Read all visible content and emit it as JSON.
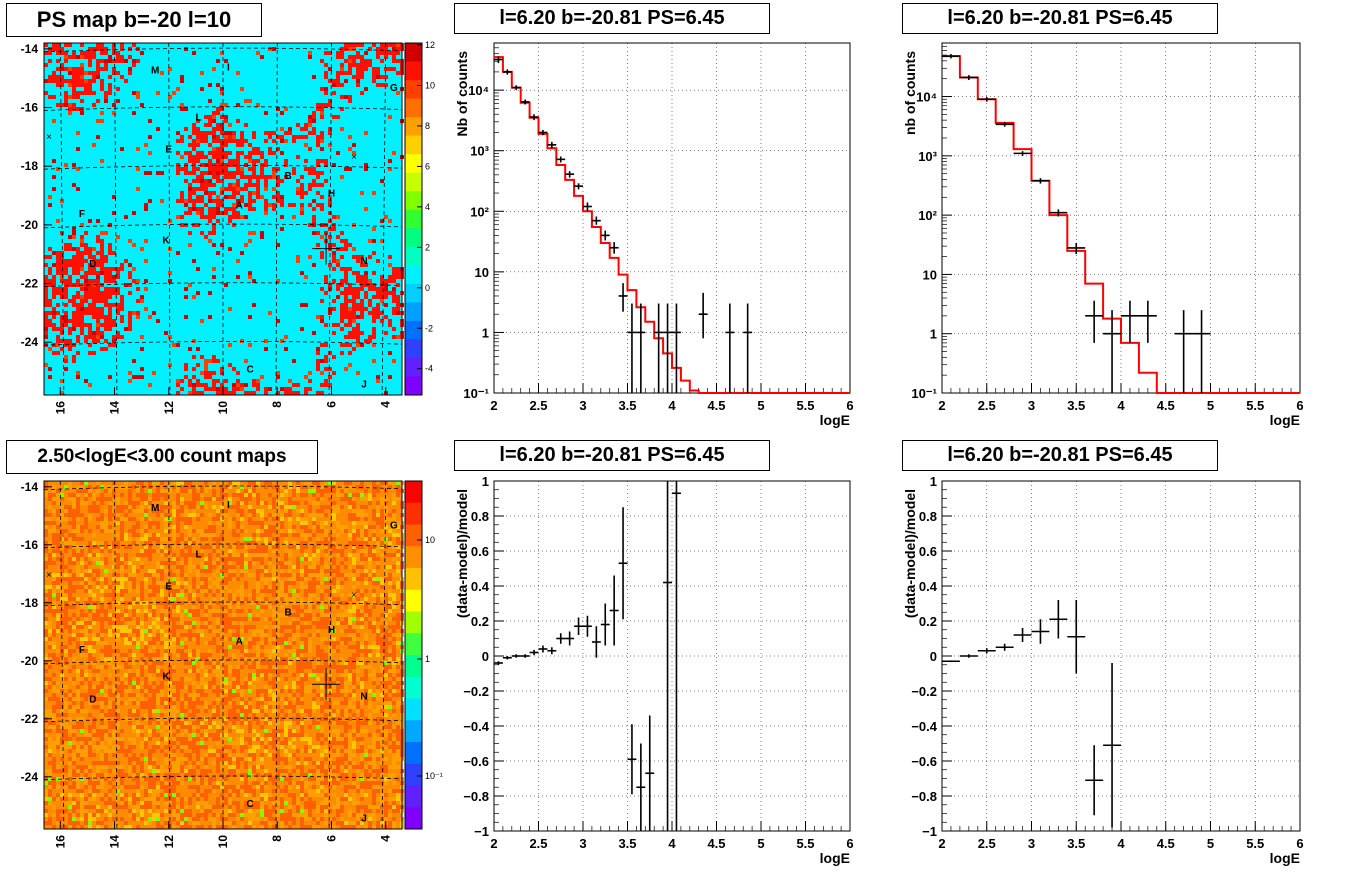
{
  "maps": {
    "ps_map": {
      "title": "PS map b=-20 l=10",
      "y_ticks": [
        "-14",
        "-16",
        "-18",
        "-20",
        "-22",
        "-24"
      ],
      "x_ticks": [
        "16",
        "14",
        "12",
        "10",
        "8",
        "6",
        "4"
      ],
      "colorbar_ticks": [
        "12",
        "10",
        "8",
        "6",
        "4",
        "2",
        "0",
        "-2",
        "-4"
      ],
      "colors": {
        "background": "#00f0ff",
        "mid": "#00ffa0",
        "high": "#7fff00"
      }
    },
    "count_map": {
      "title": "2.50<logE<3.00 count maps",
      "y_ticks": [
        "-14",
        "-16",
        "-18",
        "-20",
        "-22",
        "-24"
      ],
      "x_ticks": [
        "16",
        "14",
        "12",
        "10",
        "8",
        "6",
        "4"
      ],
      "colorbar_ticks": [
        "10",
        "1",
        "10⁻¹"
      ],
      "colors": {
        "background": "#ff8c00",
        "mid": "#ff6a00",
        "high": "#ff3000"
      }
    },
    "sources": [
      {
        "label": "M",
        "l": 12.5,
        "b": -14.7
      },
      {
        "label": "I",
        "l": 9.8,
        "b": -14.6
      },
      {
        "label": "G",
        "l": 3.7,
        "b": -15.3
      },
      {
        "label": "L",
        "l": 10.9,
        "b": -16.3
      },
      {
        "label": "E",
        "l": 12.0,
        "b": -17.4
      },
      {
        "label": "B",
        "l": 7.6,
        "b": -18.3
      },
      {
        "label": "H",
        "l": 6.0,
        "b": -18.9
      },
      {
        "label": "A",
        "l": 9.4,
        "b": -19.3
      },
      {
        "label": "F",
        "l": 15.2,
        "b": -19.6
      },
      {
        "label": "K",
        "l": 12.1,
        "b": -20.5
      },
      {
        "label": "D",
        "l": 14.8,
        "b": -21.3
      },
      {
        "label": "N",
        "l": 4.8,
        "b": -21.2
      },
      {
        "label": "C",
        "l": 9.0,
        "b": -24.9
      },
      {
        "label": "J",
        "l": 4.8,
        "b": -25.4
      }
    ],
    "marker": {
      "l": 6.2,
      "b": -20.81
    }
  },
  "spectrum_left": {
    "title": "l=6.20 b=-20.81 PS=6.45",
    "chart_data": {
      "type": "line",
      "xlabel": "logE",
      "ylabel": "Nb of counts",
      "xlim": [
        2,
        6
      ],
      "ylim": [
        0.1,
        60000
      ],
      "log_y": true,
      "x_ticks": [
        "2",
        "2.5",
        "3",
        "3.5",
        "4",
        "4.5",
        "5",
        "5.5",
        "6"
      ],
      "y_ticks": [
        {
          "v": 0.1,
          "t": "10⁻¹"
        },
        {
          "v": 1,
          "t": "1"
        },
        {
          "v": 10,
          "t": "10"
        },
        {
          "v": 100,
          "t": "10²"
        },
        {
          "v": 1000,
          "t": "10³"
        },
        {
          "v": 10000,
          "t": "10⁴"
        }
      ],
      "model_step": {
        "edges": [
          2,
          2.1,
          2.2,
          2.3,
          2.4,
          2.5,
          2.6,
          2.7,
          2.8,
          2.9,
          3.0,
          3.1,
          3.2,
          3.3,
          3.4,
          3.5,
          3.6,
          3.7,
          3.8,
          3.9,
          4.0,
          4.1,
          4.2,
          4.3,
          4.4,
          6.0
        ],
        "values": [
          35000,
          20000,
          11000,
          6200,
          3500,
          1900,
          1100,
          580,
          330,
          180,
          100,
          55,
          30,
          17,
          9,
          5,
          2.6,
          1.5,
          0.8,
          0.45,
          0.26,
          0.16,
          0.11,
          0.1,
          0.1
        ]
      },
      "data_points": [
        {
          "x": 2.05,
          "y": 32000,
          "lo": 28000,
          "hi": 36000
        },
        {
          "x": 2.15,
          "y": 20000,
          "lo": 18000,
          "hi": 22000
        },
        {
          "x": 2.25,
          "y": 11000,
          "lo": 10000,
          "hi": 12000
        },
        {
          "x": 2.35,
          "y": 6400,
          "lo": 5800,
          "hi": 7000
        },
        {
          "x": 2.45,
          "y": 3600,
          "lo": 3200,
          "hi": 4000
        },
        {
          "x": 2.55,
          "y": 2000,
          "lo": 1800,
          "hi": 2200
        },
        {
          "x": 2.65,
          "y": 1250,
          "lo": 1100,
          "hi": 1400
        },
        {
          "x": 2.75,
          "y": 720,
          "lo": 640,
          "hi": 800
        },
        {
          "x": 2.85,
          "y": 410,
          "lo": 360,
          "hi": 460
        },
        {
          "x": 2.95,
          "y": 260,
          "lo": 230,
          "hi": 290
        },
        {
          "x": 3.05,
          "y": 120,
          "lo": 100,
          "hi": 140
        },
        {
          "x": 3.15,
          "y": 70,
          "lo": 60,
          "hi": 82
        },
        {
          "x": 3.25,
          "y": 40,
          "lo": 33,
          "hi": 48
        },
        {
          "x": 3.35,
          "y": 25,
          "lo": 20,
          "hi": 31
        },
        {
          "x": 3.45,
          "y": 4,
          "lo": 2.2,
          "hi": 6.5
        },
        {
          "x": 3.55,
          "y": 1,
          "lo": 0.1,
          "hi": 3
        },
        {
          "x": 3.65,
          "y": 1,
          "lo": 0.1,
          "hi": 3
        },
        {
          "x": 3.85,
          "y": 1,
          "lo": 0.1,
          "hi": 3
        },
        {
          "x": 3.95,
          "y": 1,
          "lo": 0.1,
          "hi": 3
        },
        {
          "x": 4.05,
          "y": 1,
          "lo": 0.1,
          "hi": 3
        },
        {
          "x": 4.35,
          "y": 2,
          "lo": 0.8,
          "hi": 4.5
        },
        {
          "x": 4.65,
          "y": 1,
          "lo": 0.1,
          "hi": 3
        },
        {
          "x": 4.85,
          "y": 1,
          "lo": 0.1,
          "hi": 3
        }
      ],
      "colors": {
        "model": "#ff0000",
        "data": "#000000"
      }
    }
  },
  "spectrum_right": {
    "title": "l=6.20 b=-20.81 PS=6.45",
    "chart_data": {
      "type": "line",
      "xlabel": "logE",
      "ylabel": "nb of counts",
      "xlim": [
        2,
        6
      ],
      "ylim": [
        0.1,
        80000
      ],
      "log_y": true,
      "x_ticks": [
        "2",
        "2.5",
        "3",
        "3.5",
        "4",
        "4.5",
        "5",
        "5.5",
        "6"
      ],
      "y_ticks": [
        {
          "v": 0.1,
          "t": "10⁻¹"
        },
        {
          "v": 1,
          "t": "1"
        },
        {
          "v": 10,
          "t": "10"
        },
        {
          "v": 100,
          "t": "10²"
        },
        {
          "v": 1000,
          "t": "10³"
        },
        {
          "v": 10000,
          "t": "10⁴"
        }
      ],
      "model_step": {
        "edges": [
          2,
          2.2,
          2.4,
          2.6,
          2.8,
          3.0,
          3.2,
          3.4,
          3.6,
          3.8,
          4.0,
          4.2,
          4.4,
          6.0
        ],
        "values": [
          48000,
          21000,
          9000,
          3600,
          1300,
          380,
          100,
          25,
          7,
          1.8,
          0.7,
          0.22,
          0.1
        ]
      },
      "data_points": [
        {
          "x": 2.1,
          "y": 48000,
          "lo": 44000,
          "hi": 52000
        },
        {
          "x": 2.3,
          "y": 21000,
          "lo": 19000,
          "hi": 23000
        },
        {
          "x": 2.5,
          "y": 9000,
          "lo": 8200,
          "hi": 9800
        },
        {
          "x": 2.7,
          "y": 3400,
          "lo": 3100,
          "hi": 3700
        },
        {
          "x": 2.9,
          "y": 1100,
          "lo": 1000,
          "hi": 1200
        },
        {
          "x": 3.1,
          "y": 380,
          "lo": 340,
          "hi": 420
        },
        {
          "x": 3.3,
          "y": 110,
          "lo": 95,
          "hi": 125
        },
        {
          "x": 3.5,
          "y": 28,
          "lo": 22,
          "hi": 34
        },
        {
          "x": 3.7,
          "y": 2,
          "lo": 0.7,
          "hi": 3.6
        },
        {
          "x": 3.9,
          "y": 1,
          "lo": 0.1,
          "hi": 2.5
        },
        {
          "x": 4.1,
          "y": 2,
          "lo": 0.7,
          "hi": 3.6
        },
        {
          "x": 4.3,
          "y": 2,
          "lo": 0.7,
          "hi": 3.6
        },
        {
          "x": 4.7,
          "y": 1,
          "lo": 0.1,
          "hi": 2.5
        },
        {
          "x": 4.9,
          "y": 1,
          "lo": 0.1,
          "hi": 2.5
        }
      ],
      "colors": {
        "model": "#ff0000",
        "data": "#000000"
      }
    }
  },
  "residual_left": {
    "title": "l=6.20 b=-20.81 PS=6.45",
    "chart_data": {
      "type": "scatter",
      "xlabel": "logE",
      "ylabel": "(data-model)/model",
      "xlim": [
        2,
        6
      ],
      "ylim": [
        -1,
        1
      ],
      "x_ticks": [
        "2",
        "2.5",
        "3",
        "3.5",
        "4",
        "4.5",
        "5",
        "5.5",
        "6"
      ],
      "y_ticks": [
        "-1",
        "-0.8",
        "-0.6",
        "-0.4",
        "-0.2",
        "0",
        "0.2",
        "0.4",
        "0.6",
        "0.8",
        "1"
      ],
      "data_points": [
        {
          "x": 2.05,
          "y": -0.04,
          "err": 0.01
        },
        {
          "x": 2.15,
          "y": -0.01,
          "err": 0.01
        },
        {
          "x": 2.25,
          "y": 0.0,
          "err": 0.01
        },
        {
          "x": 2.35,
          "y": 0.0,
          "err": 0.01
        },
        {
          "x": 2.45,
          "y": 0.02,
          "err": 0.015
        },
        {
          "x": 2.55,
          "y": 0.04,
          "err": 0.02
        },
        {
          "x": 2.65,
          "y": 0.03,
          "err": 0.02
        },
        {
          "x": 2.75,
          "y": 0.1,
          "err": 0.03
        },
        {
          "x": 2.85,
          "y": 0.1,
          "err": 0.04
        },
        {
          "x": 2.95,
          "y": 0.17,
          "err": 0.05
        },
        {
          "x": 3.05,
          "y": 0.17,
          "err": 0.06
        },
        {
          "x": 3.15,
          "y": 0.08,
          "err": 0.09
        },
        {
          "x": 3.25,
          "y": 0.18,
          "err": 0.12
        },
        {
          "x": 3.35,
          "y": 0.26,
          "err": 0.2
        },
        {
          "x": 3.45,
          "y": 0.53,
          "err": 0.32
        },
        {
          "x": 3.55,
          "y": -0.59,
          "err": 0.2
        },
        {
          "x": 3.65,
          "y": -0.75,
          "err": 0.25
        },
        {
          "x": 3.75,
          "y": -0.67,
          "err": 0.33
        },
        {
          "x": 3.95,
          "y": 0.42,
          "err": 1.5
        },
        {
          "x": 4.05,
          "y": 0.93,
          "err": 2.0
        }
      ]
    }
  },
  "residual_right": {
    "title": "l=6.20 b=-20.81 PS=6.45",
    "chart_data": {
      "type": "scatter",
      "xlabel": "logE",
      "ylabel": "(data-model)/model",
      "xlim": [
        2,
        6
      ],
      "ylim": [
        -1,
        1
      ],
      "x_ticks": [
        "2",
        "2.5",
        "3",
        "3.5",
        "4",
        "4.5",
        "5",
        "5.5",
        "6"
      ],
      "y_ticks": [
        "-1",
        "-0.8",
        "-0.6",
        "-0.4",
        "-0.2",
        "0",
        "0.2",
        "0.4",
        "0.6",
        "0.8",
        "1"
      ],
      "data_points": [
        {
          "x": 2.1,
          "y": -0.03,
          "err": 0.005
        },
        {
          "x": 2.3,
          "y": 0.0,
          "err": 0.01
        },
        {
          "x": 2.5,
          "y": 0.03,
          "err": 0.015
        },
        {
          "x": 2.7,
          "y": 0.05,
          "err": 0.02
        },
        {
          "x": 2.9,
          "y": 0.12,
          "err": 0.04
        },
        {
          "x": 3.1,
          "y": 0.14,
          "err": 0.07
        },
        {
          "x": 3.3,
          "y": 0.21,
          "err": 0.11
        },
        {
          "x": 3.5,
          "y": 0.11,
          "err": 0.21
        },
        {
          "x": 3.7,
          "y": -0.71,
          "err": 0.2
        },
        {
          "x": 3.9,
          "y": -0.51,
          "err": 0.47
        }
      ]
    }
  }
}
